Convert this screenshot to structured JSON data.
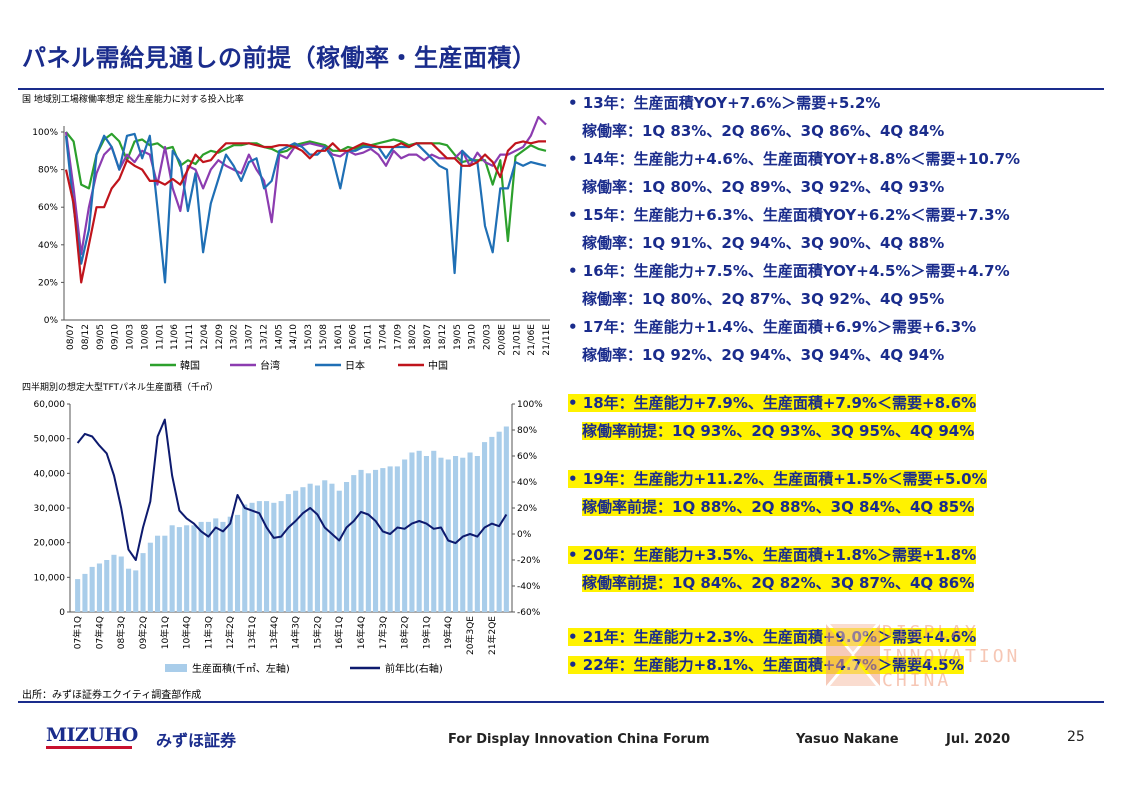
{
  "page": {
    "title": "パネル需給見通しの前提（稼働率・生産面積）",
    "page_number": "25"
  },
  "footer": {
    "source": "出所：みずほ証券エクイティ調査部作成",
    "brand_en": "MIZUHO",
    "brand_jp": "みずほ証券",
    "forum": "For Display Innovation China Forum",
    "author": "Yasuo Nakane",
    "date": "Jul. 2020"
  },
  "watermark": {
    "line1": "DISPLAY",
    "line2": "INNOVATION",
    "line3": "CHINA"
  },
  "bullets": [
    {
      "text": "• 13年：生産面積YOY+7.6%＞需要+5.2%",
      "highlight": false,
      "indent": false
    },
    {
      "text": "稼働率：1Q 83%、2Q  86%、3Q  86%、4Q  84%",
      "highlight": false,
      "indent": true
    },
    {
      "text": "• 14年：生産能力+4.6%、生産面積YOY+8.8%＜需要+10.7%",
      "highlight": false,
      "indent": false
    },
    {
      "text": "稼働率：1Q 80%、2Q  89%、3Q  92%、4Q  93%",
      "highlight": false,
      "indent": true
    },
    {
      "text": "• 15年：生産能力+6.3%、生産面積YOY+6.2%＜需要+7.3%",
      "highlight": false,
      "indent": false
    },
    {
      "text": "稼働率：1Q 91%、2Q  94%、3Q 90%、4Q 88%",
      "highlight": false,
      "indent": true
    },
    {
      "text": "• 16年：生産能力+7.5%、生産面積YOY+4.5%＞需要+4.7%",
      "highlight": false,
      "indent": false
    },
    {
      "text": "稼働率：1Q 80%、2Q  87%、3Q 92%、4Q 95%",
      "highlight": false,
      "indent": true
    },
    {
      "text": "• 17年：生産能力+1.4%、生産面積+6.9%＞需要+6.3%",
      "highlight": false,
      "indent": false
    },
    {
      "text": "稼働率：1Q 92%、2Q  94%、3Q 94%、4Q 94%",
      "highlight": false,
      "indent": true
    },
    {
      "text": "• 18年：生産能力+7.9%、生産面積+7.9%＜需要+8.6%",
      "highlight": true,
      "indent": false
    },
    {
      "text": "稼働率前提：1Q 93%、2Q  93%、3Q 95%、4Q 94%",
      "highlight": true,
      "indent": true
    },
    {
      "text": "• 19年：生産能力+11.2%、生産面積+1.5%＜需要+5.0%",
      "highlight": true,
      "indent": false
    },
    {
      "text": "稼働率前提：1Q 88%、2Q  88%、3Q 84%、4Q 85%",
      "highlight": true,
      "indent": true
    },
    {
      "text": "• 20年：生産能力+3.5%、生産面積+1.8%＞需要+1.8%",
      "highlight": true,
      "indent": false
    },
    {
      "text": "稼働率前提：1Q 84%、2Q  82%、3Q 87%、4Q 86%",
      "highlight": true,
      "indent": true
    },
    {
      "text": "• 21年：生産能力+2.3%、生産面積+9.0%＞需要+4.6%",
      "highlight": true,
      "indent": false
    },
    {
      "text": "• 22年：生産能力+8.1%、生産面積+4.7%＞需要4.5%",
      "highlight": true,
      "indent": false
    }
  ],
  "chart_data": [
    {
      "type": "line",
      "title": "国 地域別工場稼働率想定 総生産能力に対する投入比率",
      "ylim": [
        0,
        100
      ],
      "y_ticks": [
        "0%",
        "20%",
        "40%",
        "60%",
        "80%",
        "100%"
      ],
      "x_ticks": [
        "08/07",
        "08/12",
        "09/05",
        "09/10",
        "10/03",
        "10/08",
        "11/01",
        "11/06",
        "11/11",
        "12/04",
        "12/09",
        "13/02",
        "13/07",
        "13/12",
        "14/05",
        "14/10",
        "15/03",
        "15/08",
        "16/01",
        "16/06",
        "16/11",
        "17/04",
        "17/09",
        "18/02",
        "18/07",
        "18/12",
        "19/05",
        "19/10",
        "20/03",
        "20/08E",
        "21/01E",
        "21/06E",
        "21/11E"
      ],
      "legend_position": "bottom",
      "grid": false,
      "series": [
        {
          "name": "韓国",
          "color": "#2ca02c",
          "values": [
            100,
            95,
            72,
            70,
            88,
            96,
            99,
            95,
            85,
            95,
            96,
            93,
            94,
            91,
            92,
            82,
            85,
            83,
            88,
            90,
            89,
            91,
            93,
            93,
            94,
            94,
            92,
            91,
            89,
            90,
            93,
            94,
            95,
            94,
            93,
            90,
            90,
            92,
            91,
            93,
            93,
            94,
            95,
            96,
            95,
            93,
            94,
            94,
            94,
            94,
            93,
            88,
            84,
            85,
            85,
            85,
            72,
            85,
            42,
            87,
            90,
            93,
            91,
            90
          ]
        },
        {
          "name": "台湾",
          "color": "#8c3cb0",
          "values": [
            100,
            70,
            35,
            60,
            78,
            88,
            92,
            80,
            88,
            84,
            90,
            88,
            72,
            92,
            70,
            58,
            82,
            80,
            70,
            80,
            85,
            82,
            80,
            78,
            88,
            80,
            74,
            52,
            88,
            86,
            92,
            93,
            94,
            93,
            92,
            88,
            87,
            90,
            88,
            89,
            91,
            88,
            82,
            90,
            86,
            88,
            88,
            85,
            88,
            86,
            86,
            86,
            90,
            82,
            89,
            84,
            82,
            88,
            88,
            90,
            92,
            98,
            108,
            104
          ]
        },
        {
          "name": "日本",
          "color": "#1f6fb5",
          "values": [
            98,
            60,
            30,
            48,
            88,
            98,
            92,
            80,
            98,
            99,
            86,
            98,
            60,
            20,
            90,
            84,
            58,
            78,
            36,
            62,
            75,
            88,
            82,
            74,
            84,
            86,
            70,
            74,
            90,
            92,
            94,
            92,
            88,
            88,
            92,
            86,
            70,
            90,
            90,
            92,
            92,
            92,
            86,
            92,
            92,
            92,
            94,
            90,
            86,
            82,
            80,
            25,
            90,
            86,
            84,
            50,
            36,
            70,
            70,
            84,
            82,
            84,
            83,
            82
          ]
        },
        {
          "name": "中国",
          "color": "#c0141c",
          "values": [
            80,
            62,
            20,
            40,
            60,
            60,
            70,
            75,
            85,
            82,
            80,
            74,
            74,
            72,
            75,
            72,
            80,
            88,
            84,
            85,
            90,
            94,
            94,
            94,
            94,
            93,
            92,
            92,
            93,
            93,
            92,
            90,
            86,
            90,
            90,
            94,
            90,
            90,
            92,
            94,
            93,
            92,
            92,
            92,
            94,
            92,
            94,
            94,
            94,
            90,
            86,
            86,
            82,
            82,
            84,
            88,
            84,
            76,
            90,
            94,
            95,
            94,
            95,
            95
          ]
        }
      ]
    },
    {
      "type": "bar",
      "title": "四半期別の想定大型TFTパネル生産面積（千㎡）",
      "ylim": [
        0,
        60000
      ],
      "y_ticks": [
        "0",
        "10,000",
        "20,000",
        "30,000",
        "40,000",
        "50,000",
        "60,000"
      ],
      "y2lim": [
        -60,
        100
      ],
      "y2_ticks": [
        "-60%",
        "-40%",
        "-20%",
        "0%",
        "20%",
        "40%",
        "60%",
        "80%",
        "100%"
      ],
      "x_ticks": [
        "07年1Q",
        "07年4Q",
        "08年3Q",
        "09年2Q",
        "10年1Q",
        "10年4Q",
        "11年3Q",
        "12年2Q",
        "13年1Q",
        "13年4Q",
        "14年3Q",
        "15年2Q",
        "16年1Q",
        "16年4Q",
        "17年3Q",
        "18年2Q",
        "19年1Q",
        "19年4Q",
        "20年3QE",
        "21年2QE"
      ],
      "legend_position": "bottom",
      "series": [
        {
          "name": "生産面積(千㎡、左軸)",
          "axis": "left",
          "color": "#a9cdea",
          "values": [
            9500,
            11000,
            13000,
            14000,
            15000,
            16500,
            16000,
            12500,
            12000,
            17000,
            20000,
            22000,
            22000,
            25000,
            24500,
            25000,
            25000,
            26000,
            26000,
            27000,
            26000,
            27500,
            28000,
            31000,
            31500,
            32000,
            32000,
            31500,
            32000,
            34000,
            35000,
            36000,
            37000,
            36500,
            38000,
            37000,
            35000,
            37500,
            39500,
            41000,
            40000,
            41000,
            41500,
            42000,
            42000,
            44000,
            46000,
            46500,
            45000,
            46500,
            44500,
            44000,
            45000,
            44500,
            46000,
            45000,
            49000,
            50500,
            52000,
            53500
          ]
        },
        {
          "name": "前年比(右軸)",
          "axis": "right",
          "color": "#0d1a6e",
          "values": [
            70,
            77,
            75,
            68,
            62,
            45,
            20,
            -12,
            -20,
            5,
            25,
            75,
            88,
            45,
            18,
            12,
            8,
            2,
            -2,
            5,
            2,
            8,
            30,
            20,
            18,
            16,
            5,
            -3,
            -2,
            5,
            10,
            16,
            20,
            15,
            5,
            0,
            -5,
            5,
            10,
            17,
            15,
            10,
            2,
            0,
            5,
            4,
            8,
            10,
            8,
            4,
            5,
            -5,
            -7,
            -2,
            0,
            -2,
            5,
            8,
            6,
            15
          ]
        }
      ]
    }
  ]
}
